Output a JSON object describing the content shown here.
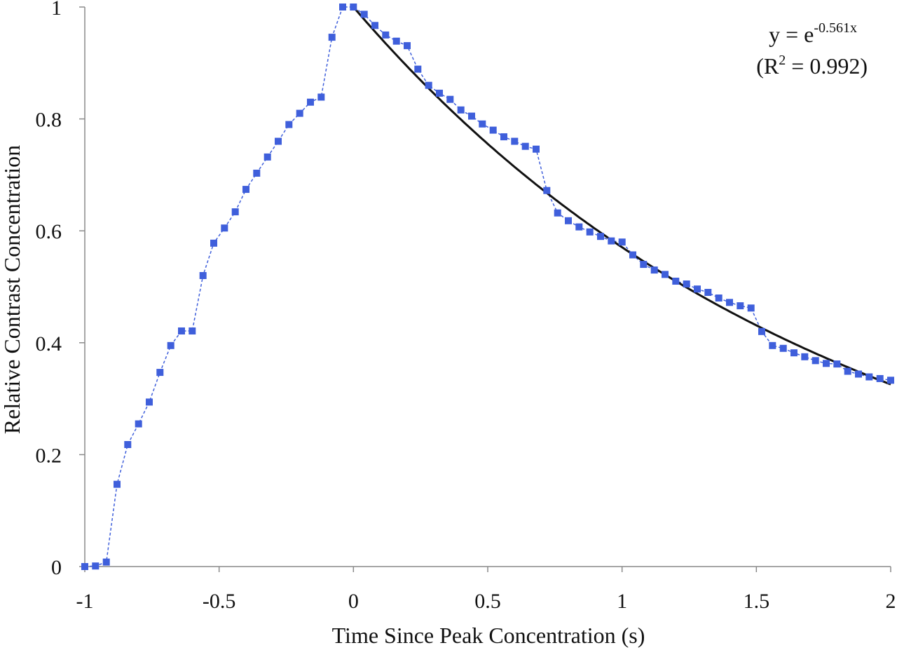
{
  "chart_data": {
    "type": "scatter",
    "title": "",
    "xlabel": "Time Since Peak Concentration (s)",
    "ylabel": "Relative Contrast Concentration",
    "xlim": [
      -1,
      2
    ],
    "ylim": [
      0,
      1
    ],
    "x_ticks": [
      -1,
      -0.5,
      0,
      0.5,
      1,
      1.5,
      2
    ],
    "x_tick_labels": [
      "-1",
      "-0.5",
      "0",
      "0.5",
      "1",
      "1.5",
      "2"
    ],
    "y_ticks": [
      0,
      0.2,
      0.4,
      0.6,
      0.8,
      1
    ],
    "y_tick_labels": [
      "0",
      "0.2",
      "0.4",
      "0.6",
      "0.8",
      "1"
    ],
    "grid": false,
    "legend": "none",
    "colors": {
      "data": "#3f5fdb",
      "fit": "#111111"
    },
    "series": [
      {
        "type": "scatter-dashed-line",
        "x": [
          -1.0,
          -0.96,
          -0.92,
          -0.88,
          -0.84,
          -0.8,
          -0.76,
          -0.72,
          -0.68,
          -0.64,
          -0.6,
          -0.56,
          -0.52,
          -0.48,
          -0.44,
          -0.4,
          -0.36,
          -0.32,
          -0.28,
          -0.24,
          -0.2,
          -0.16,
          -0.12,
          -0.08,
          -0.04,
          0.0,
          0.04,
          0.08,
          0.12,
          0.16,
          0.2,
          0.24,
          0.28,
          0.32,
          0.36,
          0.4,
          0.44,
          0.48,
          0.52,
          0.56,
          0.6,
          0.64,
          0.68,
          0.72,
          0.76,
          0.8,
          0.84,
          0.88,
          0.92,
          0.96,
          1.0,
          1.04,
          1.08,
          1.12,
          1.16,
          1.2,
          1.24,
          1.28,
          1.32,
          1.36,
          1.4,
          1.44,
          1.48,
          1.52,
          1.56,
          1.6,
          1.64,
          1.68,
          1.72,
          1.76,
          1.8,
          1.84,
          1.88,
          1.92,
          1.96,
          2.0
        ],
        "y": [
          0.0,
          0.001,
          0.008,
          0.147,
          0.218,
          0.255,
          0.294,
          0.347,
          0.395,
          0.421,
          0.421,
          0.52,
          0.578,
          0.605,
          0.634,
          0.674,
          0.703,
          0.732,
          0.76,
          0.79,
          0.81,
          0.83,
          0.839,
          0.946,
          1.0,
          1.0,
          0.987,
          0.967,
          0.95,
          0.939,
          0.931,
          0.889,
          0.86,
          0.846,
          0.835,
          0.816,
          0.805,
          0.791,
          0.78,
          0.768,
          0.76,
          0.751,
          0.746,
          0.672,
          0.632,
          0.618,
          0.607,
          0.598,
          0.59,
          0.582,
          0.58,
          0.557,
          0.54,
          0.53,
          0.522,
          0.51,
          0.505,
          0.496,
          0.49,
          0.48,
          0.472,
          0.466,
          0.462,
          0.42,
          0.395,
          0.39,
          0.382,
          0.375,
          0.368,
          0.363,
          0.362,
          0.349,
          0.344,
          0.339,
          0.336,
          0.333
        ]
      },
      {
        "type": "fit-curve",
        "equation_coefficient": -0.561,
        "x_start": 0,
        "x_end": 2
      }
    ],
    "annotations": {
      "equation_prefix": "y = e",
      "equation_exponent": "-0.561x",
      "r2_open": "(R",
      "r2_sup": "2",
      "r2_close": " = 0.992)"
    }
  }
}
